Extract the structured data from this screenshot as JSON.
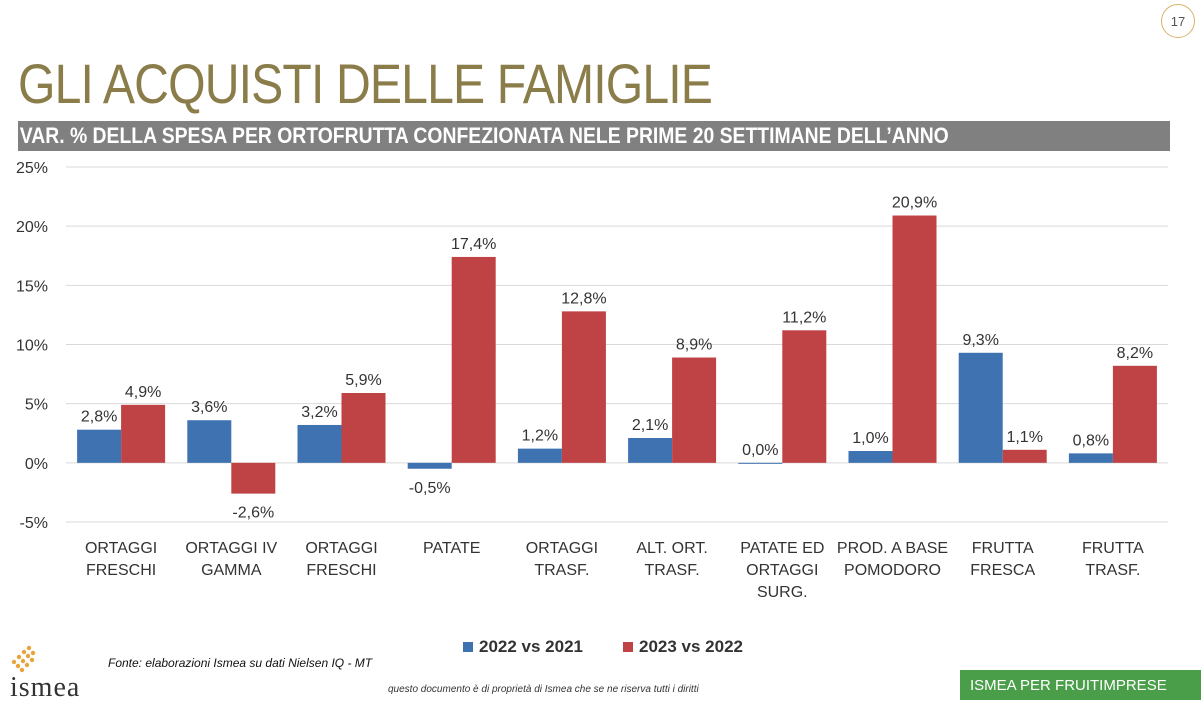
{
  "page": {
    "number": "17",
    "title": "GLI ACQUISTI DELLE FAMIGLIE",
    "subtitle": "VAR. % DELLA SPESA PER ORTOFRUTTA CONFEZIONATA NELE PRIME 20 SETTIMANE DELL’ANNO",
    "source": "Fonte: elaborazioni Ismea su dati Nielsen IQ - MT",
    "rights": "questo documento è di proprietà di Ismea che se ne riserva tutti i diritti",
    "footer_tag": "ISMEA PER FRUITIMPRESE",
    "logo_text": "ismea"
  },
  "colors": {
    "series_2022": "#3f72b0",
    "series_2023": "#bf4244",
    "title": "#8b7d4a",
    "subtitle_bar": "#808080",
    "footer": "#4a9e4a",
    "grid": "#d9d9d9"
  },
  "chart_data": {
    "type": "bar",
    "categories": [
      [
        "ORTAGGI",
        "FRESCHI"
      ],
      [
        "ORTAGGI IV",
        "GAMMA"
      ],
      [
        "ORTAGGI",
        "FRESCHI"
      ],
      [
        "PATATE"
      ],
      [
        "ORTAGGI",
        "TRASF."
      ],
      [
        "ALT. ORT.",
        "TRASF."
      ],
      [
        "PATATE ED",
        "ORTAGGI",
        "SURG."
      ],
      [
        "PROD. A BASE",
        "POMODORO"
      ],
      [
        "FRUTTA",
        "FRESCA"
      ],
      [
        "FRUTTA",
        "TRASF."
      ]
    ],
    "series": [
      {
        "name": "2022 vs 2021",
        "values": [
          2.8,
          3.6,
          3.2,
          -0.5,
          1.2,
          2.1,
          0.0,
          1.0,
          9.3,
          0.8
        ],
        "labels": [
          "2,8%",
          "3,6%",
          "3,2%",
          "-0,5%",
          "1,2%",
          "2,1%",
          "0,0%",
          "1,0%",
          "9,3%",
          "0,8%"
        ]
      },
      {
        "name": "2023 vs 2022",
        "values": [
          4.9,
          -2.6,
          5.9,
          17.4,
          12.8,
          8.9,
          11.2,
          20.9,
          1.1,
          8.2
        ],
        "labels": [
          "4,9%",
          "-2,6%",
          "5,9%",
          "17,4%",
          "12,8%",
          "8,9%",
          "11,2%",
          "20,9%",
          "1,1%",
          "8,2%"
        ]
      }
    ],
    "y_ticks": [
      25,
      20,
      15,
      10,
      5,
      0,
      -5
    ],
    "y_tick_labels": [
      "25%",
      "20%",
      "15%",
      "10%",
      "5%",
      "0%",
      "-5%"
    ],
    "ylim": [
      -5,
      25
    ],
    "grid": true,
    "legend": "bottom"
  }
}
